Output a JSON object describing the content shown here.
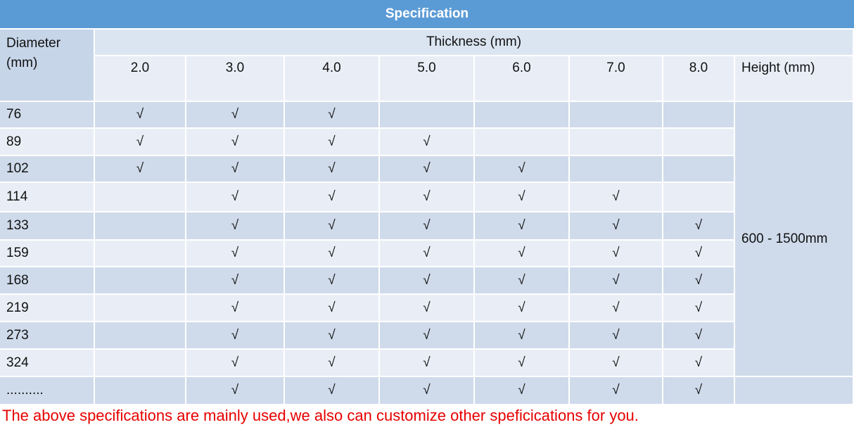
{
  "title": "Specification",
  "header": {
    "diameter": "Diameter (mm)",
    "thickness": "Thickness  (mm)",
    "columns": [
      "2.0",
      "3.0",
      "4.0",
      "5.0",
      "6.0",
      "7.0",
      "8.0"
    ],
    "height": "Height (mm)"
  },
  "rows": [
    {
      "diameter": "76",
      "cells": [
        "√",
        "√",
        "√",
        null,
        null,
        null,
        null
      ]
    },
    {
      "diameter": "89",
      "cells": [
        "√",
        "√",
        "√",
        "√",
        null,
        null,
        null
      ]
    },
    {
      "diameter": "102",
      "cells": [
        "√",
        "√",
        "√",
        "√",
        "√",
        null,
        null
      ]
    },
    {
      "diameter": "114",
      "cells": [
        null,
        "√",
        "√",
        "√",
        "√",
        "√",
        null
      ]
    },
    {
      "diameter": "133",
      "cells": [
        null,
        "√",
        "√",
        "√",
        "√",
        "√",
        "√"
      ]
    },
    {
      "diameter": "159",
      "cells": [
        null,
        "√",
        "√",
        "√",
        "√",
        "√",
        "√"
      ]
    },
    {
      "diameter": "168",
      "cells": [
        null,
        "√",
        "√",
        "√",
        "√",
        "√",
        "√"
      ]
    },
    {
      "diameter": "219",
      "cells": [
        null,
        "√",
        "√",
        "√",
        "√",
        "√",
        "√"
      ]
    },
    {
      "diameter": "273",
      "cells": [
        null,
        "√",
        "√",
        "√",
        "√",
        "√",
        "√"
      ]
    },
    {
      "diameter": "324",
      "cells": [
        null,
        "√",
        "√",
        "√",
        "√",
        "√",
        "√"
      ]
    },
    {
      "diameter": "..........",
      "cells": [
        null,
        "√",
        "√",
        "√",
        "√",
        "√",
        "√"
      ]
    }
  ],
  "height_value": "600 - 1500mm",
  "footnote": "The above specifications are mainly used,we also can customize other speficications for you."
}
